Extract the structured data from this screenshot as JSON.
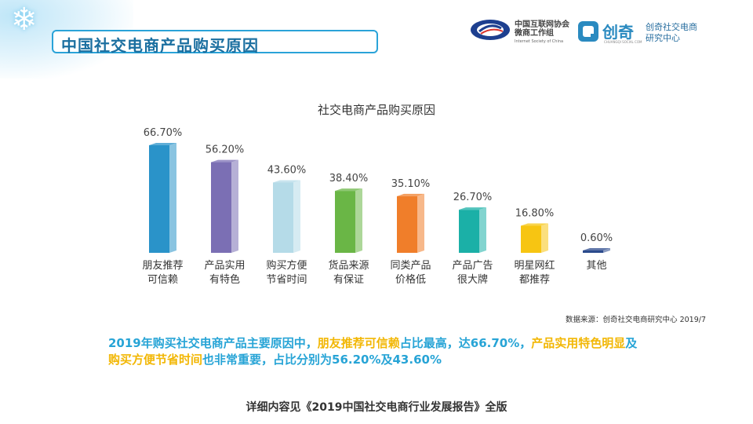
{
  "header": {
    "title": "中国社交电商产品购买原因",
    "logo_isc_line1": "中国互联网协会",
    "logo_isc_line2": "微商工作组",
    "logo_isc_en": "Internet Society of China",
    "logo_cq_name": "创奇",
    "logo_cq_en": "CHUANGQI SOCIAL COM",
    "logo_cq_center_line1": "创奇社交电商",
    "logo_cq_center_line2": "研究中心"
  },
  "chart_data": {
    "type": "bar",
    "title": "社交电商产品购买原因",
    "categories": [
      [
        "朋友推荐",
        "可信赖"
      ],
      [
        "产品实用",
        "有特色"
      ],
      [
        "购买方便",
        "节省时间"
      ],
      [
        "货品来源",
        "有保证"
      ],
      [
        "同类产品",
        "价格低"
      ],
      [
        "产品广告",
        "很大牌"
      ],
      [
        "明星网红",
        "都推荐"
      ],
      [
        "其他"
      ]
    ],
    "values": [
      66.7,
      56.2,
      43.6,
      38.4,
      35.1,
      26.7,
      16.8,
      0.6
    ],
    "value_labels": [
      "66.70%",
      "56.20%",
      "43.60%",
      "38.40%",
      "35.10%",
      "26.70%",
      "16.80%",
      "0.60%"
    ],
    "colors": [
      "#2a93c9",
      "#7b6fb4",
      "#b5dbe8",
      "#6ab646",
      "#f07e2a",
      "#1bb0a7",
      "#f7c512",
      "#2b4a8c"
    ],
    "ylim": [
      0,
      66.7
    ],
    "xlabel": "",
    "ylabel": ""
  },
  "source": "数据来源：创奇社交电商研究中心 2019/7",
  "summary": {
    "part1": "2019年购买社交电商产品主要原因中，",
    "part2": "朋友推荐可信赖",
    "part3": "占比最高，达66.70%，",
    "part4": "产品实用特色明显",
    "part5": "及",
    "part6": "购买方便节省时间",
    "part7": "也非常重要，占比分别为56.20%及43.60%"
  },
  "footer": "详细内容见《2019中国社交电商行业发展报告》全版"
}
